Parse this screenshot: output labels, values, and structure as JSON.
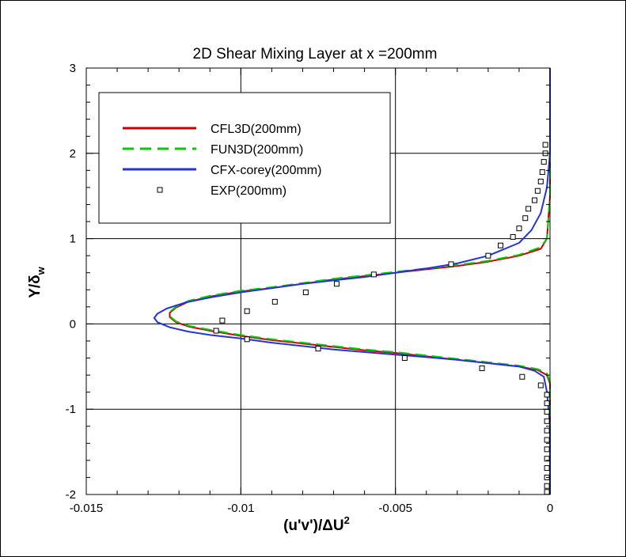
{
  "chart_data": {
    "type": "line",
    "title": "2D Shear Mixing Layer at x =200mm",
    "xlabel": "(u'v')/ΔU²",
    "ylabel": "Y/δw",
    "xlim": [
      -0.015,
      0
    ],
    "ylim": [
      -2,
      3
    ],
    "x_ticks": [
      -0.015,
      -0.01,
      -0.005,
      0
    ],
    "x_tick_labels": [
      "-0.015",
      "-0.01",
      "-0.005",
      "0"
    ],
    "y_ticks": [
      -2,
      -1,
      0,
      1,
      2,
      3
    ],
    "y_tick_labels": [
      "-2",
      "-1",
      "0",
      "1",
      "2",
      "3"
    ],
    "grid": true,
    "legend_position": "top-left",
    "series": [
      {
        "name": "CFL3D(200mm)",
        "style": "solid",
        "color": "#cc0000",
        "points": [
          [
            0,
            3.0
          ],
          [
            0,
            1.5
          ],
          [
            -0.0001,
            1.0
          ],
          [
            -0.0003,
            0.88
          ],
          [
            -0.001,
            0.8
          ],
          [
            -0.002,
            0.73
          ],
          [
            -0.003,
            0.68
          ],
          [
            -0.004,
            0.64
          ],
          [
            -0.005,
            0.6
          ],
          [
            -0.006,
            0.56
          ],
          [
            -0.007,
            0.52
          ],
          [
            -0.008,
            0.47
          ],
          [
            -0.009,
            0.42
          ],
          [
            -0.01,
            0.38
          ],
          [
            -0.011,
            0.32
          ],
          [
            -0.0117,
            0.26
          ],
          [
            -0.0121,
            0.19
          ],
          [
            -0.0123,
            0.13
          ],
          [
            -0.0123,
            0.08
          ],
          [
            -0.0121,
            0.02
          ],
          [
            -0.0117,
            -0.03
          ],
          [
            -0.011,
            -0.08
          ],
          [
            -0.01,
            -0.14
          ],
          [
            -0.009,
            -0.19
          ],
          [
            -0.008,
            -0.23
          ],
          [
            -0.007,
            -0.27
          ],
          [
            -0.006,
            -0.31
          ],
          [
            -0.005,
            -0.34
          ],
          [
            -0.004,
            -0.38
          ],
          [
            -0.003,
            -0.42
          ],
          [
            -0.002,
            -0.46
          ],
          [
            -0.001,
            -0.5
          ],
          [
            -0.0004,
            -0.54
          ],
          [
            -0.0001,
            -0.6
          ],
          [
            0,
            -0.7
          ],
          [
            0,
            -2.0
          ]
        ]
      },
      {
        "name": "FUN3D(200mm)",
        "style": "dashed",
        "color": "#00cc00",
        "points": [
          [
            0,
            3.0
          ],
          [
            0,
            1.5
          ],
          [
            -0.0001,
            1.0
          ],
          [
            -0.0003,
            0.9
          ],
          [
            -0.001,
            0.81
          ],
          [
            -0.002,
            0.74
          ],
          [
            -0.003,
            0.69
          ],
          [
            -0.004,
            0.65
          ],
          [
            -0.005,
            0.61
          ],
          [
            -0.006,
            0.57
          ],
          [
            -0.007,
            0.53
          ],
          [
            -0.008,
            0.48
          ],
          [
            -0.009,
            0.43
          ],
          [
            -0.01,
            0.39
          ],
          [
            -0.011,
            0.33
          ],
          [
            -0.0117,
            0.27
          ],
          [
            -0.0121,
            0.2
          ],
          [
            -0.0123,
            0.14
          ],
          [
            -0.0123,
            0.09
          ],
          [
            -0.0121,
            0.03
          ],
          [
            -0.0117,
            -0.02
          ],
          [
            -0.011,
            -0.07
          ],
          [
            -0.01,
            -0.13
          ],
          [
            -0.009,
            -0.18
          ],
          [
            -0.008,
            -0.22
          ],
          [
            -0.007,
            -0.26
          ],
          [
            -0.006,
            -0.3
          ],
          [
            -0.005,
            -0.33
          ],
          [
            -0.004,
            -0.37
          ],
          [
            -0.003,
            -0.41
          ],
          [
            -0.002,
            -0.45
          ],
          [
            -0.001,
            -0.49
          ],
          [
            -0.0004,
            -0.53
          ],
          [
            -0.0001,
            -0.58
          ],
          [
            0,
            -0.68
          ],
          [
            0,
            -2.0
          ]
        ]
      },
      {
        "name": "CFX-corey(200mm)",
        "style": "solid",
        "color": "#2233dd",
        "points": [
          [
            0,
            3.0
          ],
          [
            0,
            2.0
          ],
          [
            -0.0001,
            1.6
          ],
          [
            -0.0003,
            1.3
          ],
          [
            -0.0006,
            1.1
          ],
          [
            -0.001,
            0.95
          ],
          [
            -0.002,
            0.8
          ],
          [
            -0.003,
            0.71
          ],
          [
            -0.004,
            0.65
          ],
          [
            -0.005,
            0.6
          ],
          [
            -0.006,
            0.55
          ],
          [
            -0.007,
            0.51
          ],
          [
            -0.008,
            0.47
          ],
          [
            -0.009,
            0.42
          ],
          [
            -0.01,
            0.37
          ],
          [
            -0.011,
            0.31
          ],
          [
            -0.0118,
            0.25
          ],
          [
            -0.0124,
            0.18
          ],
          [
            -0.0127,
            0.12
          ],
          [
            -0.0128,
            0.07
          ],
          [
            -0.0127,
            0.02
          ],
          [
            -0.0123,
            -0.04
          ],
          [
            -0.0117,
            -0.09
          ],
          [
            -0.011,
            -0.13
          ],
          [
            -0.01,
            -0.17
          ],
          [
            -0.009,
            -0.22
          ],
          [
            -0.008,
            -0.26
          ],
          [
            -0.007,
            -0.3
          ],
          [
            -0.006,
            -0.33
          ],
          [
            -0.005,
            -0.36
          ],
          [
            -0.004,
            -0.39
          ],
          [
            -0.003,
            -0.42
          ],
          [
            -0.002,
            -0.46
          ],
          [
            -0.001,
            -0.5
          ],
          [
            -0.0005,
            -0.55
          ],
          [
            -0.0002,
            -0.62
          ],
          [
            -0.0001,
            -0.8
          ],
          [
            0,
            -1.2
          ],
          [
            0,
            -2.0
          ]
        ]
      },
      {
        "name": "EXP(200mm)",
        "style": "marker",
        "color": "#000000",
        "points": [
          [
            -0.00015,
            2.1
          ],
          [
            -0.00015,
            2.0
          ],
          [
            -0.0002,
            1.9
          ],
          [
            -0.00025,
            1.78
          ],
          [
            -0.0003,
            1.67
          ],
          [
            -0.0004,
            1.56
          ],
          [
            -0.0005,
            1.45
          ],
          [
            -0.0007,
            1.35
          ],
          [
            -0.0008,
            1.24
          ],
          [
            -0.001,
            1.12
          ],
          [
            -0.0012,
            1.02
          ],
          [
            -0.0016,
            0.92
          ],
          [
            -0.002,
            0.8
          ],
          [
            -0.0032,
            0.7
          ],
          [
            -0.0057,
            0.58
          ],
          [
            -0.0069,
            0.47
          ],
          [
            -0.0079,
            0.37
          ],
          [
            -0.0089,
            0.26
          ],
          [
            -0.0098,
            0.15
          ],
          [
            -0.0106,
            0.04
          ],
          [
            -0.0108,
            -0.08
          ],
          [
            -0.0098,
            -0.18
          ],
          [
            -0.0075,
            -0.29
          ],
          [
            -0.0047,
            -0.4
          ],
          [
            -0.0022,
            -0.52
          ],
          [
            -0.0009,
            -0.62
          ],
          [
            -0.0003,
            -0.72
          ],
          [
            -0.0001,
            -0.83
          ],
          [
            -0.0001,
            -0.93
          ],
          [
            -0.0001,
            -1.03
          ],
          [
            -0.0001,
            -1.14
          ],
          [
            -0.0001,
            -1.25
          ],
          [
            -0.0001,
            -1.36
          ],
          [
            -0.0001,
            -1.47
          ],
          [
            -0.0001,
            -1.58
          ],
          [
            -0.0001,
            -1.69
          ],
          [
            -0.0001,
            -1.8
          ],
          [
            -0.0001,
            -1.9
          ],
          [
            -0.0001,
            -1.97
          ]
        ]
      }
    ]
  }
}
